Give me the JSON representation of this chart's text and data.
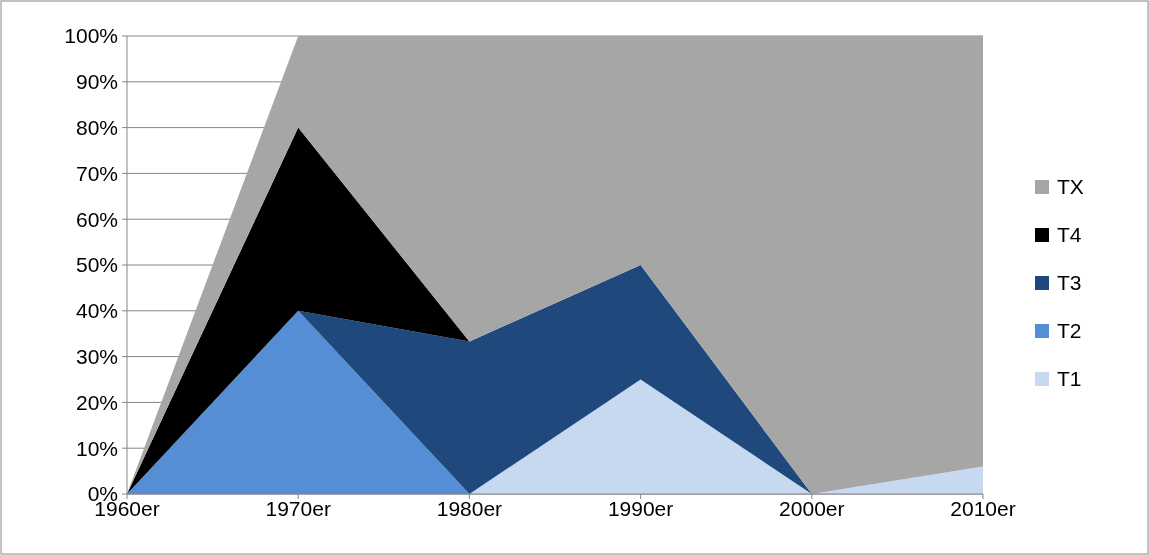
{
  "chart_data": {
    "type": "area",
    "stacked": true,
    "categories": [
      "1960er",
      "1970er",
      "1980er",
      "1990er",
      "2000er",
      "2010er"
    ],
    "series": [
      {
        "name": "T1",
        "color": "#c6d9f1",
        "values": [
          0,
          0,
          0,
          25,
          0,
          6
        ]
      },
      {
        "name": "T2",
        "color": "#558ed5",
        "values": [
          0,
          40,
          0,
          0,
          0,
          0
        ]
      },
      {
        "name": "T3",
        "color": "#1f497d",
        "values": [
          0,
          0,
          33.3,
          25,
          0,
          0
        ]
      },
      {
        "name": "T4",
        "color": "#000000",
        "values": [
          0,
          40,
          0,
          0,
          0,
          0
        ]
      },
      {
        "name": "TX",
        "color": "#a6a6a6",
        "values": [
          0,
          20,
          66.7,
          50,
          100,
          94
        ]
      }
    ],
    "ylim": [
      0,
      100
    ],
    "yticks": [
      {
        "value": 0,
        "label": "0%"
      },
      {
        "value": 10,
        "label": "10%"
      },
      {
        "value": 20,
        "label": "20%"
      },
      {
        "value": 30,
        "label": "30%"
      },
      {
        "value": 40,
        "label": "40%"
      },
      {
        "value": 50,
        "label": "50%"
      },
      {
        "value": 60,
        "label": "60%"
      },
      {
        "value": 70,
        "label": "70%"
      },
      {
        "value": 80,
        "label": "80%"
      },
      {
        "value": 90,
        "label": "90%"
      },
      {
        "value": 100,
        "label": "100%"
      }
    ],
    "grid": "y",
    "legend": "right"
  }
}
